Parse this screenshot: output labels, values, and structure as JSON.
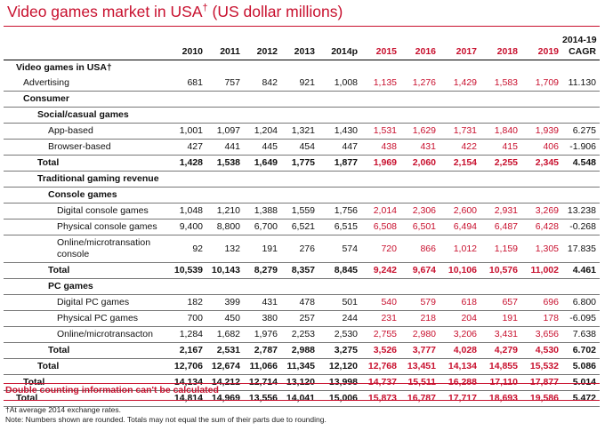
{
  "title": "Video games market in USA",
  "title_dagger": "†",
  "title_unit": " (US dollar millions)",
  "headers": {
    "years": [
      "2010",
      "2011",
      "2012",
      "2013",
      "2014p",
      "2015",
      "2016",
      "2017",
      "2018",
      "2019"
    ],
    "cagr_line1": "2014-19",
    "cagr_line2": "CAGR"
  },
  "rows": [
    {
      "label": "Video games in USA†",
      "indent": 1,
      "bold": true,
      "values": []
    },
    {
      "label": "Advertising",
      "indent": 2,
      "values": [
        "681",
        "757",
        "842",
        "921",
        "1,008",
        "1,135",
        "1,276",
        "1,429",
        "1,583",
        "1,709"
      ],
      "cagr": "11.130",
      "line": true
    },
    {
      "label": "Consumer",
      "indent": 2,
      "bold": true,
      "values": [],
      "line": true
    },
    {
      "label": "Social/casual games",
      "indent": 3,
      "bold": true,
      "values": [],
      "line": true
    },
    {
      "label": "App-based",
      "indent": 4,
      "values": [
        "1,001",
        "1,097",
        "1,204",
        "1,321",
        "1,430",
        "1,531",
        "1,629",
        "1,731",
        "1,840",
        "1,939"
      ],
      "cagr": "6.275",
      "line": true
    },
    {
      "label": "Browser-based",
      "indent": 4,
      "values": [
        "427",
        "441",
        "445",
        "454",
        "447",
        "438",
        "431",
        "422",
        "415",
        "406"
      ],
      "cagr": "-1.906",
      "line": true
    },
    {
      "label": "Total",
      "indent": 3,
      "bold": true,
      "values": [
        "1,428",
        "1,538",
        "1,649",
        "1,775",
        "1,877",
        "1,969",
        "2,060",
        "2,154",
        "2,255",
        "2,345"
      ],
      "cagr": "4.548",
      "line": true
    },
    {
      "label": "Traditional gaming revenue",
      "indent": 3,
      "bold": true,
      "values": [],
      "line": true
    },
    {
      "label": "Console games",
      "indent": 4,
      "bold": true,
      "values": [],
      "line": true
    },
    {
      "label": "Digital console games",
      "indent": 5,
      "values": [
        "1,048",
        "1,210",
        "1,388",
        "1,559",
        "1,756",
        "2,014",
        "2,306",
        "2,600",
        "2,931",
        "3,269"
      ],
      "cagr": "13.238",
      "line": true
    },
    {
      "label": "Physical console games",
      "indent": 5,
      "values": [
        "9,400",
        "8,800",
        "6,700",
        "6,521",
        "6,515",
        "6,508",
        "6,501",
        "6,494",
        "6,487",
        "6,428"
      ],
      "cagr": "-0.268",
      "line": true
    },
    {
      "label": "Online/microtransation console",
      "indent": 5,
      "values": [
        "92",
        "132",
        "191",
        "276",
        "574",
        "720",
        "866",
        "1,012",
        "1,159",
        "1,305"
      ],
      "cagr": "17.835",
      "line": true,
      "tall": true
    },
    {
      "label": "Total",
      "indent": 4,
      "bold": true,
      "values": [
        "10,539",
        "10,143",
        "8,279",
        "8,357",
        "8,845",
        "9,242",
        "9,674",
        "10,106",
        "10,576",
        "11,002"
      ],
      "cagr": "4.461",
      "line": true
    },
    {
      "label": "PC games",
      "indent": 4,
      "bold": true,
      "values": [],
      "line": true
    },
    {
      "label": "Digital PC games",
      "indent": 5,
      "values": [
        "182",
        "399",
        "431",
        "478",
        "501",
        "540",
        "579",
        "618",
        "657",
        "696"
      ],
      "cagr": "6.800",
      "line": true
    },
    {
      "label": "Physical PC games",
      "indent": 5,
      "values": [
        "700",
        "450",
        "380",
        "257",
        "244",
        "231",
        "218",
        "204",
        "191",
        "178"
      ],
      "cagr": "-6.095",
      "line": true
    },
    {
      "label": "Online/microtransacton",
      "indent": 5,
      "values": [
        "1,284",
        "1,682",
        "1,976",
        "2,253",
        "2,530",
        "2,755",
        "2,980",
        "3,206",
        "3,431",
        "3,656"
      ],
      "cagr": "7.638",
      "line": true
    },
    {
      "label": "Total",
      "indent": 4,
      "bold": true,
      "values": [
        "2,167",
        "2,531",
        "2,787",
        "2,988",
        "3,275",
        "3,526",
        "3,777",
        "4,028",
        "4,279",
        "4,530"
      ],
      "cagr": "6.702",
      "line": true
    },
    {
      "label": "Total",
      "indent": 3,
      "bold": true,
      "values": [
        "12,706",
        "12,674",
        "11,066",
        "11,345",
        "12,120",
        "12,768",
        "13,451",
        "14,134",
        "14,855",
        "15,532"
      ],
      "cagr": "5.086",
      "line": true
    },
    {
      "label": "Total",
      "indent": 2,
      "bold": true,
      "values": [
        "14,134",
        "14,212",
        "12,714",
        "13,120",
        "13,998",
        "14,737",
        "15,511",
        "16,288",
        "17,110",
        "17,877"
      ],
      "cagr": "5.014",
      "line": true
    },
    {
      "label": "Total",
      "indent": 1,
      "bold": true,
      "values": [
        "14,814",
        "14,969",
        "13,556",
        "14,041",
        "15,006",
        "15,873",
        "16,787",
        "17,717",
        "18,693",
        "19,586"
      ],
      "cagr": "5.472",
      "line": true
    }
  ],
  "double_counting_note": "Double counting information can't be calculated",
  "footnote_1": "†At average 2014 exchange rates.",
  "footnote_2": "Note: Numbers shown are rounded. Totals may not equal the sum of their parts due to rounding.",
  "colors": {
    "accent": "#c8102e",
    "forecast": "#c8102e",
    "text": "#111111"
  }
}
